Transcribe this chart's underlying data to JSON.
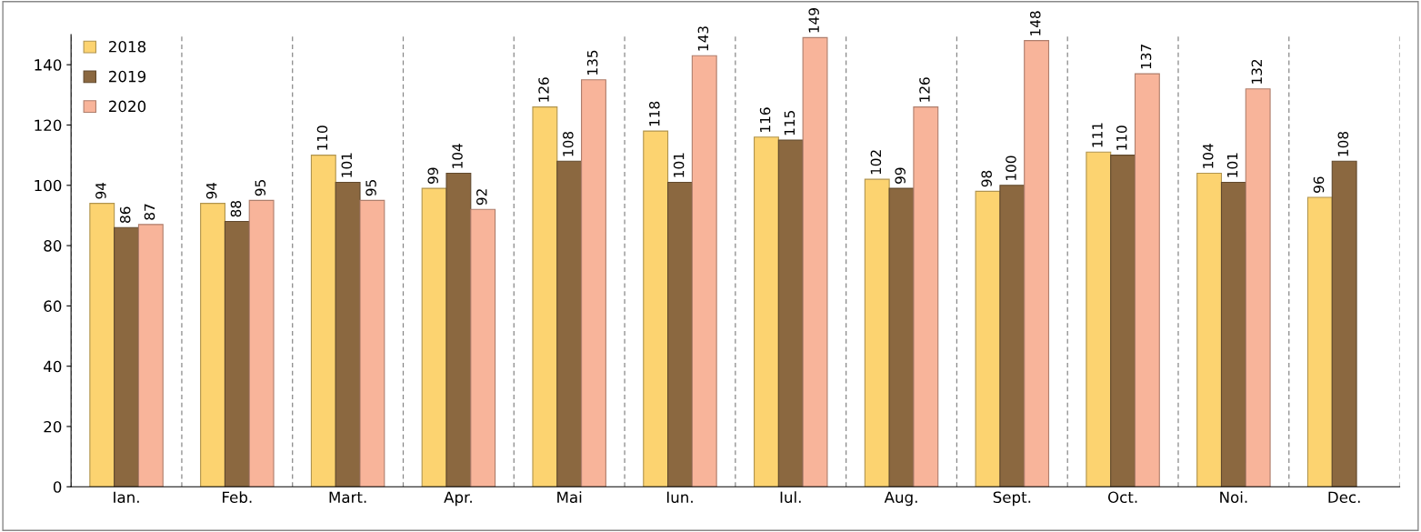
{
  "chart_data": {
    "type": "bar",
    "categories": [
      "Ian.",
      "Feb.",
      "Mart.",
      "Apr.",
      "Mai",
      "Iun.",
      "Iul.",
      "Aug.",
      "Sept.",
      "Oct.",
      "Noi.",
      "Dec."
    ],
    "series": [
      {
        "name": "2018",
        "color": "#fcd370",
        "values": [
          94,
          94,
          110,
          99,
          126,
          118,
          116,
          102,
          98,
          111,
          104,
          96
        ]
      },
      {
        "name": "2019",
        "color": "#8b6840",
        "values": [
          86,
          88,
          101,
          104,
          108,
          101,
          115,
          99,
          100,
          110,
          101,
          108
        ]
      },
      {
        "name": "2020",
        "color": "#f8b49a",
        "values": [
          87,
          95,
          95,
          92,
          135,
          143,
          149,
          126,
          148,
          137,
          132,
          null
        ]
      }
    ],
    "ylim": [
      0,
      150
    ],
    "yticks": [
      0,
      20,
      40,
      60,
      80,
      100,
      120,
      140
    ],
    "grid": "x",
    "legend": "top left",
    "data_labels": true
  }
}
